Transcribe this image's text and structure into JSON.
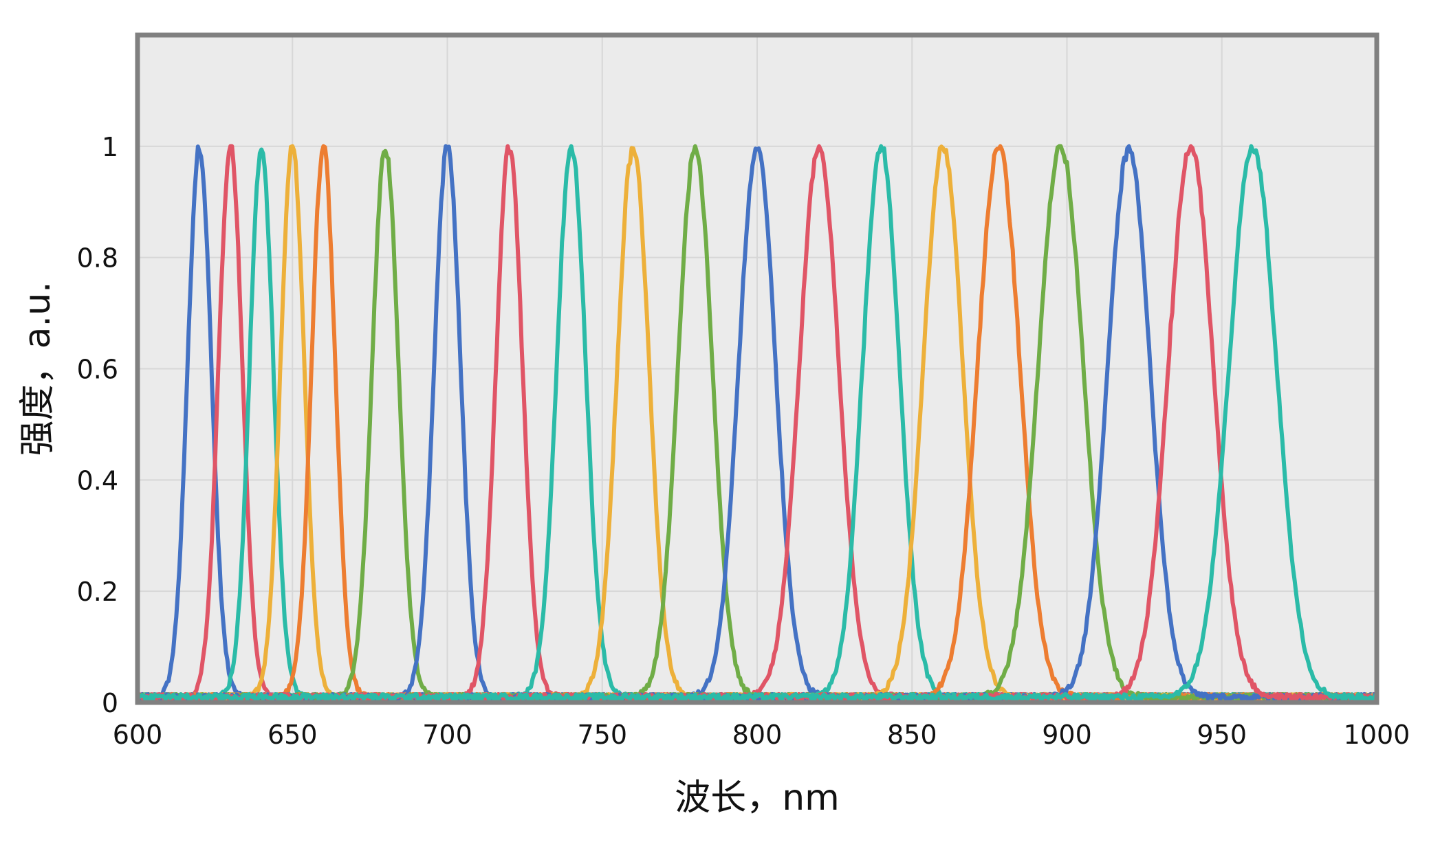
{
  "chart_data": {
    "type": "line",
    "xlabel": "波长，nm",
    "ylabel": "强度，a.u.",
    "xlim": [
      600,
      1000
    ],
    "ylim": [
      0,
      1.2
    ],
    "x_ticks": [
      600,
      650,
      700,
      750,
      800,
      850,
      900,
      950,
      1000
    ],
    "y_ticks": [
      0,
      0.2,
      0.4,
      0.6,
      0.8,
      1
    ],
    "y_tick_labels": [
      "0",
      "0.2",
      "0.4",
      "0.6",
      "0.8",
      "1"
    ],
    "grid": true,
    "legend": "none",
    "baseline": 0.01,
    "series": [
      {
        "peak": 620,
        "fwhm": 9,
        "color": "#4472C4"
      },
      {
        "peak": 630,
        "fwhm": 9,
        "color": "#E05566"
      },
      {
        "peak": 640,
        "fwhm": 9,
        "color": "#2BBBA8"
      },
      {
        "peak": 650,
        "fwhm": 9,
        "color": "#EDB03A"
      },
      {
        "peak": 660,
        "fwhm": 9,
        "color": "#ED7D31"
      },
      {
        "peak": 680,
        "fwhm": 10,
        "color": "#70AD47"
      },
      {
        "peak": 700,
        "fwhm": 10,
        "color": "#4472C4"
      },
      {
        "peak": 720,
        "fwhm": 10,
        "color": "#E05566"
      },
      {
        "peak": 740,
        "fwhm": 11,
        "color": "#2BBBA8"
      },
      {
        "peak": 760,
        "fwhm": 12,
        "color": "#EDB03A"
      },
      {
        "peak": 780,
        "fwhm": 13,
        "color": "#70AD47"
      },
      {
        "peak": 800,
        "fwhm": 14,
        "color": "#4472C4"
      },
      {
        "peak": 820,
        "fwhm": 15,
        "color": "#E05566"
      },
      {
        "peak": 840,
        "fwhm": 14,
        "color": "#2BBBA8"
      },
      {
        "peak": 860,
        "fwhm": 15,
        "color": "#EDB03A"
      },
      {
        "peak": 878,
        "fwhm": 16,
        "color": "#ED7D31"
      },
      {
        "peak": 898,
        "fwhm": 17,
        "color": "#70AD47"
      },
      {
        "peak": 920,
        "fwhm": 16,
        "color": "#4472C4"
      },
      {
        "peak": 940,
        "fwhm": 17,
        "color": "#E05566"
      },
      {
        "peak": 960,
        "fwhm": 18,
        "color": "#2BBBA8"
      }
    ]
  }
}
